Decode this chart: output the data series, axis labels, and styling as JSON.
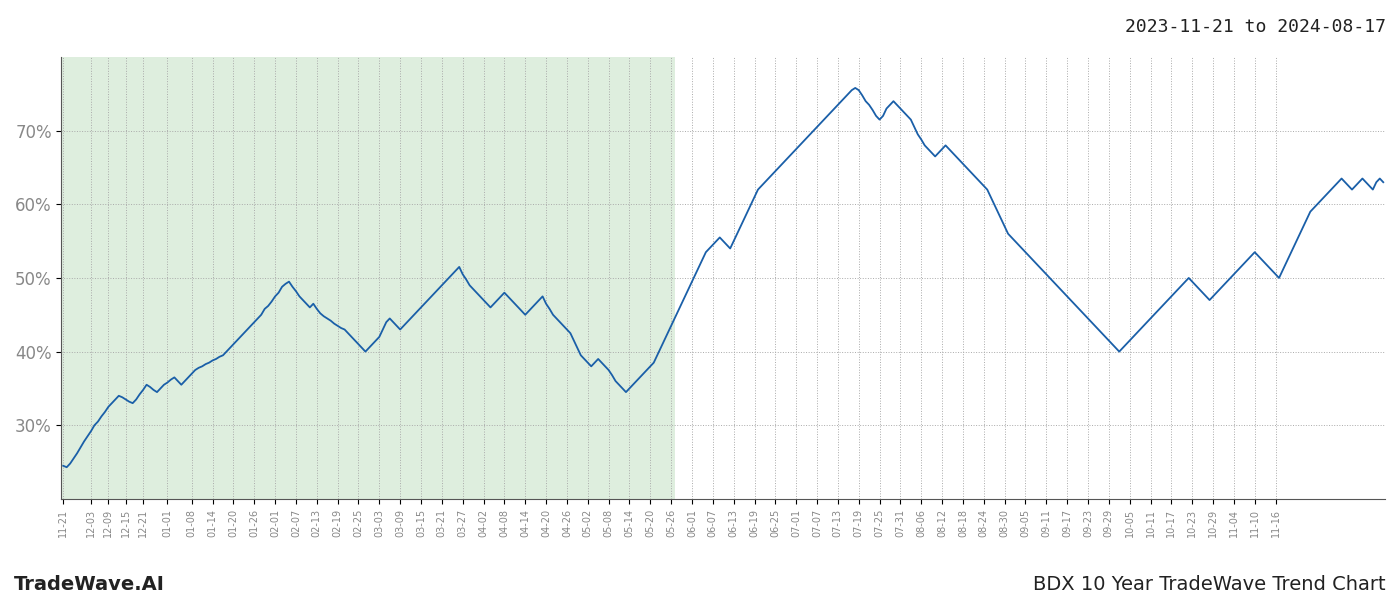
{
  "title_top_right": "2023-11-21 to 2024-08-17",
  "footer_left": "TradeWave.AI",
  "footer_right": "BDX 10 Year TradeWave Trend Chart",
  "bg_color": "#ffffff",
  "plot_bg_color": "#deeede",
  "line_color": "#1a5fa8",
  "line_width": 1.3,
  "ylim": [
    20,
    80
  ],
  "yticks": [
    30,
    40,
    50,
    60,
    70
  ],
  "shaded_x_end_index": 176,
  "x_tick_labels": [
    "11-21",
    "12-03",
    "12-09",
    "12-15",
    "12-21",
    "01-01",
    "01-08",
    "01-14",
    "01-20",
    "01-26",
    "02-01",
    "02-07",
    "02-13",
    "02-19",
    "02-25",
    "03-03",
    "03-09",
    "03-15",
    "03-21",
    "03-27",
    "04-02",
    "04-08",
    "04-14",
    "04-20",
    "04-26",
    "05-02",
    "05-08",
    "05-14",
    "05-20",
    "05-26",
    "06-01",
    "06-07",
    "06-13",
    "06-19",
    "06-25",
    "07-01",
    "07-07",
    "07-13",
    "07-19",
    "07-25",
    "07-31",
    "08-06",
    "08-12",
    "08-18",
    "08-24",
    "08-30",
    "09-05",
    "09-11",
    "09-17",
    "09-23",
    "09-29",
    "10-05",
    "10-11",
    "10-17",
    "10-23",
    "10-29",
    "11-04",
    "11-10",
    "11-16"
  ],
  "x_tick_positions": [
    0,
    8,
    13,
    18,
    23,
    30,
    37,
    43,
    49,
    55,
    61,
    67,
    73,
    79,
    85,
    91,
    97,
    103,
    109,
    115,
    121,
    127,
    133,
    139,
    145,
    151,
    157,
    163,
    169,
    175,
    181,
    187,
    193,
    199,
    205,
    211,
    217,
    223,
    229,
    235,
    241,
    247,
    253,
    259,
    265,
    271,
    277,
    283,
    289,
    295,
    301,
    307,
    313,
    319,
    325,
    331,
    337,
    343,
    349
  ],
  "y_values": [
    24.5,
    24.3,
    24.8,
    25.5,
    26.2,
    27.0,
    27.8,
    28.5,
    29.2,
    30.0,
    30.5,
    31.2,
    31.8,
    32.5,
    33.0,
    33.5,
    34.0,
    33.8,
    33.5,
    33.2,
    33.0,
    33.5,
    34.2,
    34.8,
    35.5,
    35.2,
    34.8,
    34.5,
    35.0,
    35.5,
    35.8,
    36.2,
    36.5,
    36.0,
    35.5,
    36.0,
    36.5,
    37.0,
    37.5,
    37.8,
    38.0,
    38.3,
    38.5,
    38.8,
    39.0,
    39.3,
    39.5,
    40.0,
    40.5,
    41.0,
    41.5,
    42.0,
    42.5,
    43.0,
    43.5,
    44.0,
    44.5,
    45.0,
    45.8,
    46.2,
    46.8,
    47.5,
    48.0,
    48.8,
    49.2,
    49.5,
    48.8,
    48.2,
    47.5,
    47.0,
    46.5,
    46.0,
    46.5,
    45.8,
    45.2,
    44.8,
    44.5,
    44.2,
    43.8,
    43.5,
    43.2,
    43.0,
    42.5,
    42.0,
    41.5,
    41.0,
    40.5,
    40.0,
    40.5,
    41.0,
    41.5,
    42.0,
    43.0,
    44.0,
    44.5,
    44.0,
    43.5,
    43.0,
    43.5,
    44.0,
    44.5,
    45.0,
    45.5,
    46.0,
    46.5,
    47.0,
    47.5,
    48.0,
    48.5,
    49.0,
    49.5,
    50.0,
    50.5,
    51.0,
    51.5,
    50.5,
    49.8,
    49.0,
    48.5,
    48.0,
    47.5,
    47.0,
    46.5,
    46.0,
    46.5,
    47.0,
    47.5,
    48.0,
    47.5,
    47.0,
    46.5,
    46.0,
    45.5,
    45.0,
    45.5,
    46.0,
    46.5,
    47.0,
    47.5,
    46.5,
    45.8,
    45.0,
    44.5,
    44.0,
    43.5,
    43.0,
    42.5,
    41.5,
    40.5,
    39.5,
    39.0,
    38.5,
    38.0,
    38.5,
    39.0,
    38.5,
    38.0,
    37.5,
    36.8,
    36.0,
    35.5,
    35.0,
    34.5,
    35.0,
    35.5,
    36.0,
    36.5,
    37.0,
    37.5,
    38.0,
    38.5,
    39.5,
    40.5,
    41.5,
    42.5,
    43.5,
    44.5,
    45.5,
    46.5,
    47.5,
    48.5,
    49.5,
    50.5,
    51.5,
    52.5,
    53.5,
    54.0,
    54.5,
    55.0,
    55.5,
    55.0,
    54.5,
    54.0,
    55.0,
    56.0,
    57.0,
    58.0,
    59.0,
    60.0,
    61.0,
    62.0,
    62.5,
    63.0,
    63.5,
    64.0,
    64.5,
    65.0,
    65.5,
    66.0,
    66.5,
    67.0,
    67.5,
    68.0,
    68.5,
    69.0,
    69.5,
    70.0,
    70.5,
    71.0,
    71.5,
    72.0,
    72.5,
    73.0,
    73.5,
    74.0,
    74.5,
    75.0,
    75.5,
    75.8,
    75.5,
    74.8,
    74.0,
    73.5,
    72.8,
    72.0,
    71.5,
    72.0,
    73.0,
    73.5,
    74.0,
    73.5,
    73.0,
    72.5,
    72.0,
    71.5,
    70.5,
    69.5,
    68.8,
    68.0,
    67.5,
    67.0,
    66.5,
    67.0,
    67.5,
    68.0,
    67.5,
    67.0,
    66.5,
    66.0,
    65.5,
    65.0,
    64.5,
    64.0,
    63.5,
    63.0,
    62.5,
    62.0,
    61.0,
    60.0,
    59.0,
    58.0,
    57.0,
    56.0,
    55.5,
    55.0,
    54.5,
    54.0,
    53.5,
    53.0,
    52.5,
    52.0,
    51.5,
    51.0,
    50.5,
    50.0,
    49.5,
    49.0,
    48.5,
    48.0,
    47.5,
    47.0,
    46.5,
    46.0,
    45.5,
    45.0,
    44.5,
    44.0,
    43.5,
    43.0,
    42.5,
    42.0,
    41.5,
    41.0,
    40.5,
    40.0,
    40.5,
    41.0,
    41.5,
    42.0,
    42.5,
    43.0,
    43.5,
    44.0,
    44.5,
    45.0,
    45.5,
    46.0,
    46.5,
    47.0,
    47.5,
    48.0,
    48.5,
    49.0,
    49.5,
    50.0,
    49.5,
    49.0,
    48.5,
    48.0,
    47.5,
    47.0,
    47.5,
    48.0,
    48.5,
    49.0,
    49.5,
    50.0,
    50.5,
    51.0,
    51.5,
    52.0,
    52.5,
    53.0,
    53.5,
    53.0,
    52.5,
    52.0,
    51.5,
    51.0,
    50.5,
    50.0,
    51.0,
    52.0,
    53.0,
    54.0,
    55.0,
    56.0,
    57.0,
    58.0,
    59.0,
    59.5,
    60.0,
    60.5,
    61.0,
    61.5,
    62.0,
    62.5,
    63.0,
    63.5,
    63.0,
    62.5,
    62.0,
    62.5,
    63.0,
    63.5,
    63.0,
    62.5,
    62.0,
    63.0,
    63.5,
    63.0
  ]
}
